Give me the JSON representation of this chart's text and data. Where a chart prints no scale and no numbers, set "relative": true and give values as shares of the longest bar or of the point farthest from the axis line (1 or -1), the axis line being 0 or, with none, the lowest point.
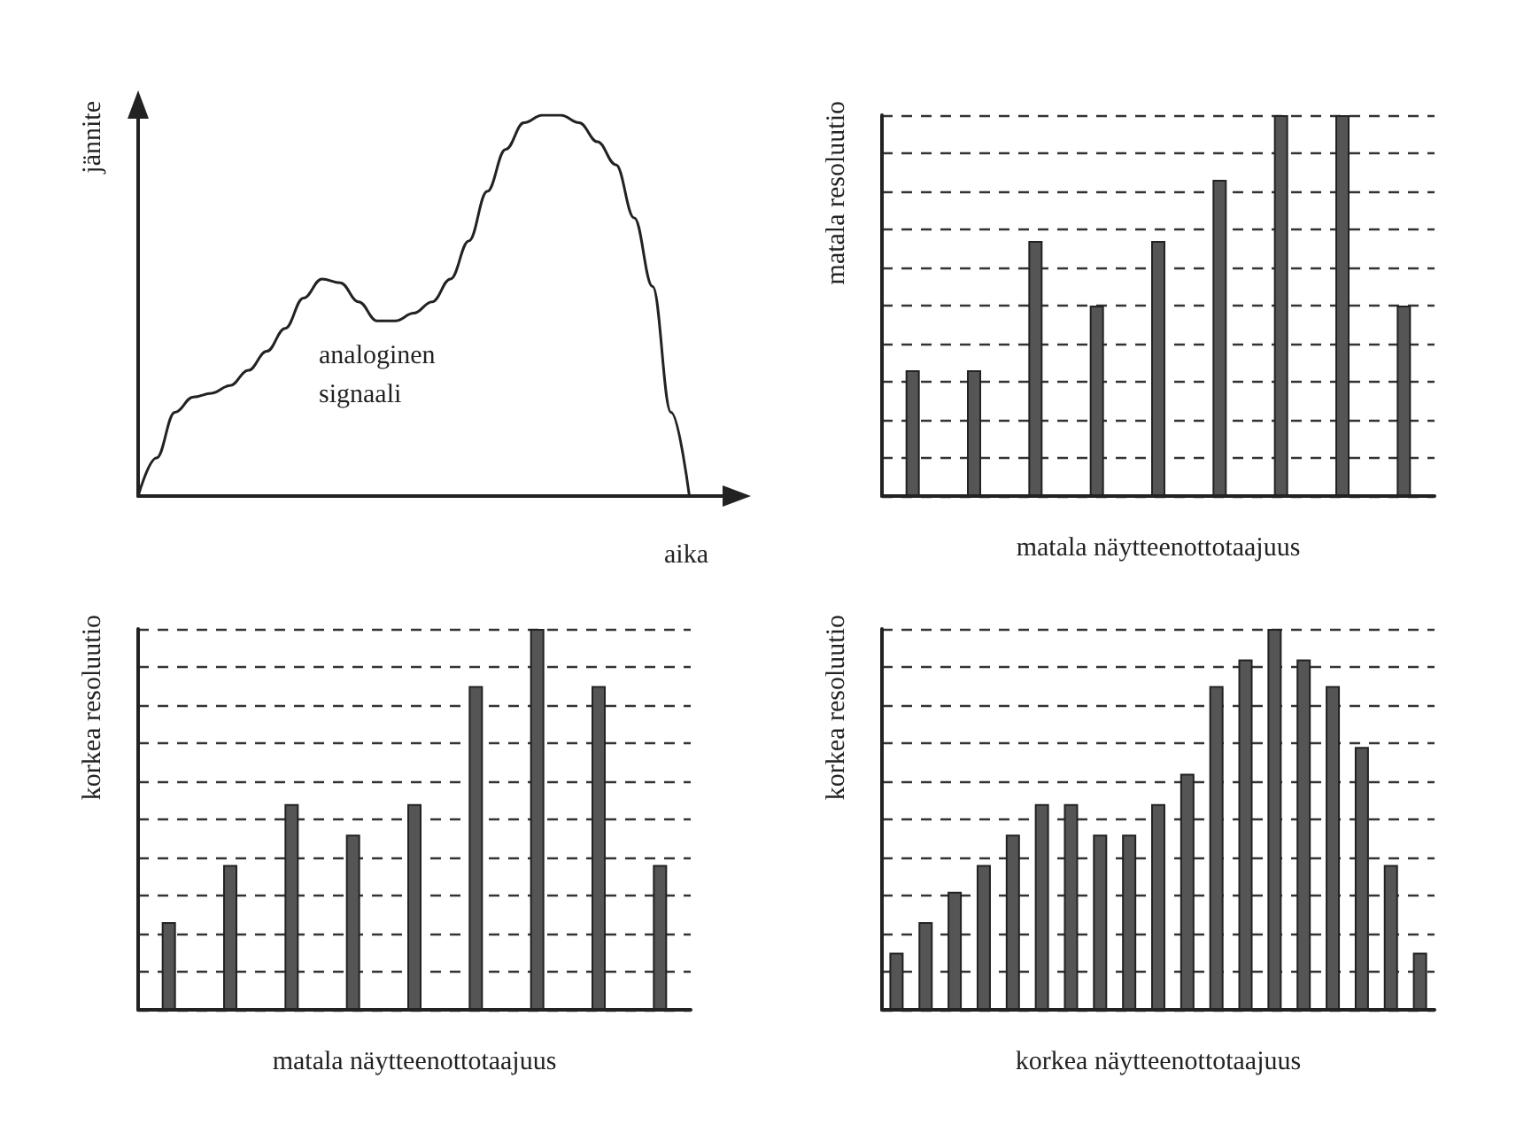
{
  "chart_data": [
    {
      "type": "line",
      "relative": true,
      "xlabel": "aika",
      "ylabel": "jännite",
      "annotations": [
        "analoginen signaali"
      ],
      "color": "#222222",
      "marker": "none",
      "grid": false,
      "categories": [
        null,
        null,
        null,
        null,
        null,
        null,
        null,
        null,
        null,
        null,
        null,
        null,
        null,
        null,
        null,
        null,
        null,
        null,
        null,
        null,
        null,
        null,
        null,
        null,
        null,
        null,
        null,
        null,
        null,
        null,
        null,
        null,
        null
      ],
      "values": [
        0,
        0.1,
        0.22,
        0.26,
        0.27,
        0.29,
        0.33,
        0.38,
        0.44,
        0.52,
        0.57,
        0.56,
        0.51,
        0.46,
        0.46,
        0.48,
        0.51,
        0.57,
        0.67,
        0.8,
        0.91,
        0.98,
        1,
        1,
        0.98,
        0.93,
        0.87,
        0.73,
        0.55,
        0.22,
        0,
        null,
        null
      ]
    },
    {
      "type": "bar",
      "relative": true,
      "xlabel": "matala näytteenottotaajuus",
      "ylabel": "matala resoluutio",
      "color": "#555555",
      "grid": "y",
      "categories": [
        null,
        null,
        null,
        null,
        null,
        null,
        null,
        null,
        null
      ],
      "values": [
        0.33,
        0.33,
        0.67,
        0.5,
        0.67,
        0.83,
        1,
        1,
        0.5
      ]
    },
    {
      "type": "bar",
      "relative": true,
      "xlabel": "matala näytteenottotaajuus",
      "ylabel": "korkea resoluutio",
      "color": "#555555",
      "grid": "y",
      "categories": [
        null,
        null,
        null,
        null,
        null,
        null,
        null,
        null,
        null
      ],
      "values": [
        0.23,
        0.38,
        0.54,
        0.46,
        0.54,
        0.85,
        1,
        0.85,
        0.38
      ]
    },
    {
      "type": "bar",
      "relative": true,
      "xlabel": "korkea näytteenottotaajuus",
      "ylabel": "korkea resoluutio",
      "color": "#555555",
      "grid": "y",
      "categories": [
        null,
        null,
        null,
        null,
        null,
        null,
        null,
        null,
        null,
        null,
        null,
        null,
        null,
        null,
        null,
        null,
        null,
        null,
        null
      ],
      "values": [
        0.15,
        0.23,
        0.31,
        0.38,
        0.46,
        0.54,
        0.54,
        0.46,
        0.46,
        0.54,
        0.62,
        0.85,
        0.92,
        1,
        0.92,
        0.85,
        0.69,
        0.38,
        0.15
      ]
    }
  ]
}
